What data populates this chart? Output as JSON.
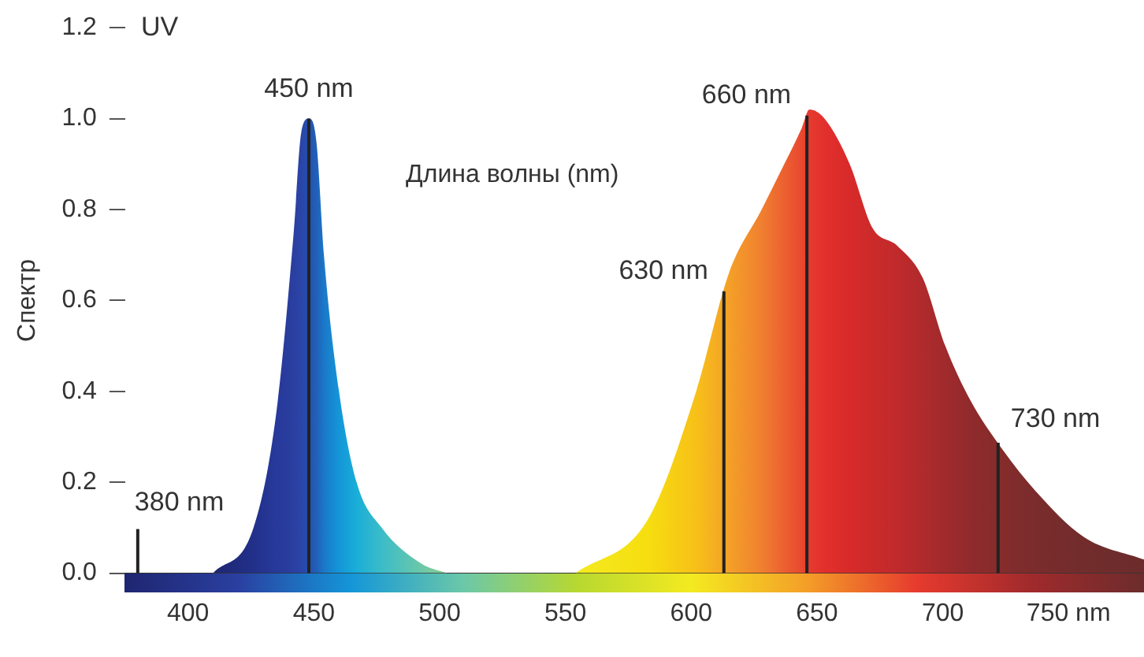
{
  "chart_data": {
    "type": "area",
    "xlabel": "Длина волны (nm)",
    "ylabel": "Спектр",
    "xlim": [
      375,
      780
    ],
    "ylim": [
      0,
      1.2
    ],
    "xticks": [
      400,
      450,
      500,
      550,
      600,
      650,
      700,
      {
        "value": 750,
        "label": "750 nm"
      }
    ],
    "yticks": [
      {
        "value": 0,
        "label": "0.0"
      },
      0.2,
      0.4,
      0.6,
      0.8,
      {
        "value": 1,
        "label": "1.0"
      },
      1.2
    ],
    "series": [
      {
        "x": [
          410,
          426,
          435,
          442,
          445,
          448,
          451,
          454,
          460,
          467,
          477,
          493,
          503
        ],
        "values": [
          0,
          0.1,
          0.35,
          0.75,
          0.97,
          1.0,
          0.95,
          0.7,
          0.4,
          0.2,
          0.1,
          0.02,
          0
        ],
        "colors": [
          "#1e2670",
          "#22308a",
          "#27399a",
          "#2a3fa0",
          "#2a45a8",
          "#2550b0",
          "#2060b8",
          "#1a78c8",
          "#1496d8",
          "#1aaed8",
          "#3cbcc8",
          "#6cc8a8",
          "#8ccc90"
        ]
      },
      {
        "x": [
          554,
          583,
          602,
          615,
          628,
          637,
          644,
          647,
          653,
          663,
          672,
          682,
          692,
          701,
          711,
          724,
          737,
          756,
          780
        ],
        "values": [
          0,
          0.12,
          0.4,
          0.66,
          0.8,
          0.9,
          0.98,
          1.02,
          1.0,
          0.9,
          0.76,
          0.72,
          0.65,
          0.5,
          0.38,
          0.27,
          0.18,
          0.08,
          0.03
        ],
        "colors": [
          "#f4ea20",
          "#f6de10",
          "#f7c018",
          "#f4a028",
          "#f08030",
          "#ec6030",
          "#e84830",
          "#e63a2e",
          "#e2302c",
          "#d82a2a",
          "#cc2a2a",
          "#c02a2c",
          "#b02a2c",
          "#a02a2c",
          "#902a2c",
          "#842c2c",
          "#7a2c2c",
          "#722c2c",
          "#6c2c2c"
        ]
      }
    ],
    "annotations": [
      "UV"
    ],
    "ref_lines": [
      {
        "axis": "x",
        "value": 380,
        "label": "380 nm"
      },
      {
        "axis": "x",
        "value": 448,
        "label": "450 nm"
      },
      {
        "axis": "x",
        "value": 613,
        "label": "630 nm"
      },
      {
        "axis": "x",
        "value": 646,
        "label": "660 nm"
      },
      {
        "axis": "x",
        "value": 722,
        "label": "730 nm"
      }
    ],
    "grid": false,
    "legend": false
  }
}
